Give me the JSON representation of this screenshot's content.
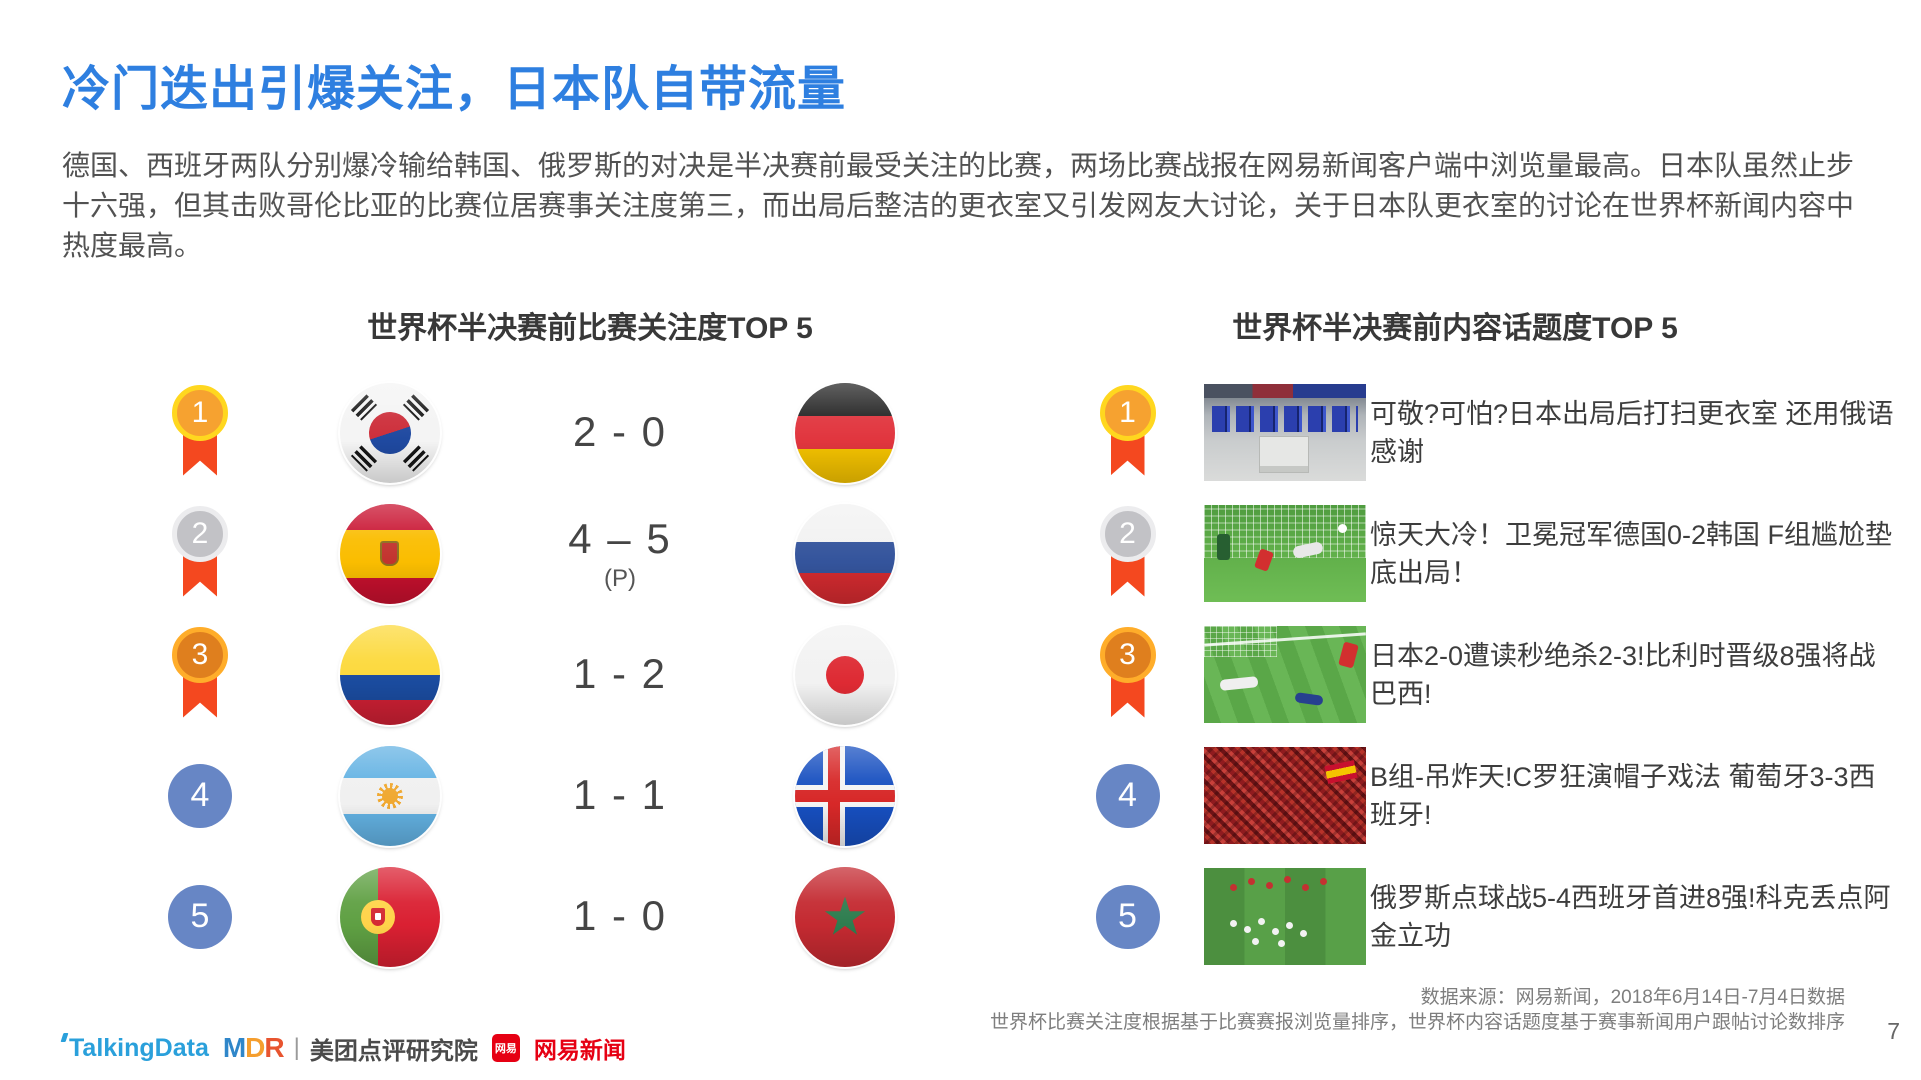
{
  "slide": {
    "title": "冷门迭出引爆关注，日本队自带流量",
    "intro": "德国、西班牙两队分别爆冷输给韩国、俄罗斯的对决是半决赛前最受关注的比赛，两场比赛战报在网易新闻客户端中浏览量最高。日本队虽然止步十六强，但其击败哥伦比亚的比赛位居赛事关注度第三，而出局后整洁的更衣室又引发网友大讨论，关于日本队更衣室的讨论在世界杯新闻内容中热度最高。",
    "page_number": "7"
  },
  "left_panel": {
    "header": "世界杯半决赛前比赛关注度TOP 5",
    "rows": [
      {
        "rank": "1",
        "home_team": "South Korea",
        "home_flag_icon": "flag-south-korea-icon",
        "score": "2 - 0",
        "score_note": "",
        "away_team": "Germany",
        "away_flag_icon": "flag-germany-icon"
      },
      {
        "rank": "2",
        "home_team": "Spain",
        "home_flag_icon": "flag-spain-icon",
        "score": "4 – 5",
        "score_note": "(P)",
        "away_team": "Russia",
        "away_flag_icon": "flag-russia-icon"
      },
      {
        "rank": "3",
        "home_team": "Colombia",
        "home_flag_icon": "flag-colombia-icon",
        "score": "1 - 2",
        "score_note": "",
        "away_team": "Japan",
        "away_flag_icon": "flag-japan-icon"
      },
      {
        "rank": "4",
        "home_team": "Argentina",
        "home_flag_icon": "flag-argentina-icon",
        "score": "1 - 1",
        "score_note": "",
        "away_team": "Iceland",
        "away_flag_icon": "flag-iceland-icon"
      },
      {
        "rank": "5",
        "home_team": "Portugal",
        "home_flag_icon": "flag-portugal-icon",
        "score": "1 - 0",
        "score_note": "",
        "away_team": "Morocco",
        "away_flag_icon": "flag-morocco-icon"
      }
    ]
  },
  "right_panel": {
    "header": "世界杯半决赛前内容话题度TOP 5",
    "rows": [
      {
        "rank": "1",
        "photo": "japan-locker-room-photo",
        "headline": "可敬?可怕?日本出局后打扫更衣室 还用俄语感谢"
      },
      {
        "rank": "2",
        "photo": "germany-korea-match-photo",
        "headline": "惊天大冷！卫冕冠军德国0-2韩国 F组尴尬垫底出局！"
      },
      {
        "rank": "3",
        "photo": "japan-belgium-match-photo",
        "headline": "日本2-0遭读秒绝杀2-3!比利时晋级8强将战巴西!"
      },
      {
        "rank": "4",
        "photo": "portugal-spain-fans-photo",
        "headline": "B组-吊炸天!C罗狂演帽子戏法 葡萄牙3-3西班牙!"
      },
      {
        "rank": "5",
        "photo": "russia-spain-celebration-photo",
        "headline": "俄罗斯点球战5-4西班牙首进8强!科克丢点阿金立功"
      }
    ]
  },
  "footer": {
    "source_line1": "数据来源：网易新闻，2018年6月14日-7月4日数据",
    "source_line2": "世界杯比赛关注度根据基于比赛赛报浏览量排序，世界杯内容话题度基于赛事新闻用户跟帖讨论数排序",
    "logos": {
      "talkingdata": "TalkingData",
      "mdr": "MDR",
      "separator": "|",
      "meituan_institute": "美团点评研究院",
      "netease_badge": "网易",
      "netease_news": "网易新闻"
    }
  },
  "colors": {
    "title_blue": "#2E7FE0",
    "rank_badge_blue": "#6786C5",
    "medal_ribbon_red": "#F4481F",
    "netease_red": "#E60013",
    "talkingdata_blue": "#2AA0DB"
  }
}
